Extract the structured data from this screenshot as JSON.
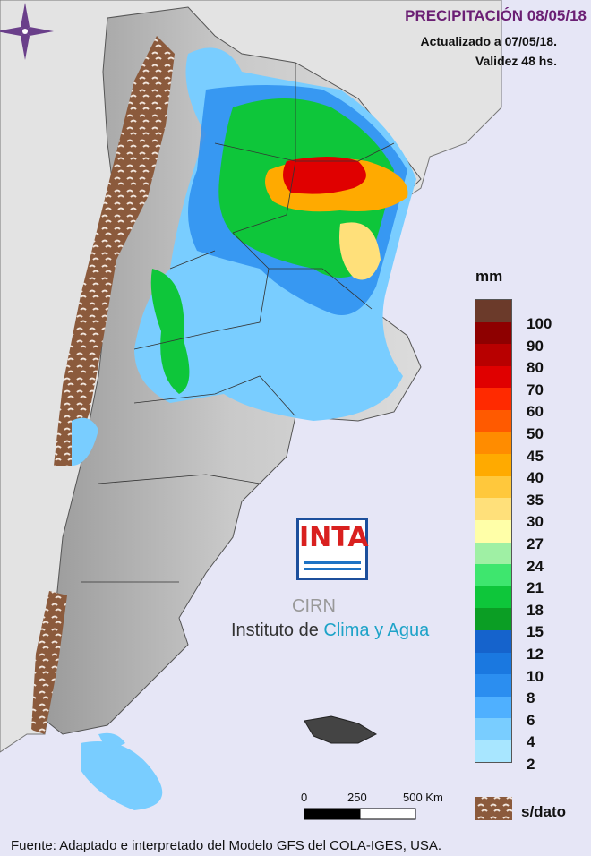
{
  "title": "PRECIPITACIÓN 08/05/18",
  "updated": "Actualizado a 07/05/18.",
  "validity": "Validez 48 hs.",
  "legend": {
    "unit": "mm",
    "items": [
      {
        "label": "100",
        "color": "#6b3a2a"
      },
      {
        "label": "90",
        "color": "#8e0000"
      },
      {
        "label": "80",
        "color": "#b80000"
      },
      {
        "label": "70",
        "color": "#e00000"
      },
      {
        "label": "60",
        "color": "#ff2a00"
      },
      {
        "label": "50",
        "color": "#ff5a00"
      },
      {
        "label": "45",
        "color": "#ff8c00"
      },
      {
        "label": "40",
        "color": "#ffaa00"
      },
      {
        "label": "35",
        "color": "#ffc83c"
      },
      {
        "label": "30",
        "color": "#ffe07a"
      },
      {
        "label": "27",
        "color": "#ffffa8"
      },
      {
        "label": "24",
        "color": "#9ff0a4"
      },
      {
        "label": "21",
        "color": "#3ee66e"
      },
      {
        "label": "18",
        "color": "#0ec63a"
      },
      {
        "label": "15",
        "color": "#0b9e24"
      },
      {
        "label": "12",
        "color": "#1563cc"
      },
      {
        "label": "10",
        "color": "#1a78e0"
      },
      {
        "label": "8",
        "color": "#2b8ef0"
      },
      {
        "label": "6",
        "color": "#4fb0ff"
      },
      {
        "label": "4",
        "color": "#79cdff"
      },
      {
        "label": "2",
        "color": "#a8e6ff"
      }
    ],
    "no_data_label": "s/dato",
    "no_data_color": "#8b5a3c"
  },
  "scale": {
    "labels": [
      "0",
      "250",
      "500 Km"
    ]
  },
  "logo": {
    "brand": "INTA",
    "center": "CIRN",
    "institute_prefix": "Instituto de",
    "institute_accent": "Clima y Agua"
  },
  "source": "Fuente: Adaptado e interpretado del Modelo GFS del COLA-IGES, USA."
}
